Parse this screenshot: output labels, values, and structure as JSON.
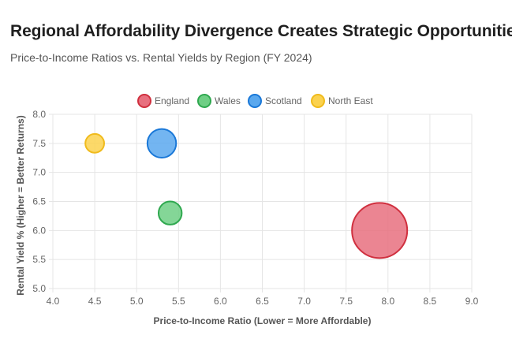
{
  "header": {
    "title": "Regional Affordability Divergence Creates Strategic Opportunities",
    "subtitle": "Price-to-Income Ratios vs. Rental Yields by Region (FY 2024)"
  },
  "chart_data": {
    "type": "scatter",
    "title": "Regional Affordability Divergence Creates Strategic Opportunities",
    "subtitle": "Price-to-Income Ratios vs. Rental Yields by Region (FY 2024)",
    "xlabel": "Price-to-Income Ratio (Lower = More Affordable)",
    "ylabel": "Rental Yield % (Higher = Better Returns)",
    "xlim": [
      4.0,
      9.0
    ],
    "ylim": [
      5.0,
      8.0
    ],
    "x_ticks": [
      "4.0",
      "4.5",
      "5.0",
      "5.5",
      "6.0",
      "6.5",
      "7.0",
      "7.5",
      "8.0",
      "8.5",
      "9.0"
    ],
    "y_ticks": [
      "8.0",
      "7.5",
      "7.0",
      "6.5",
      "6.0",
      "5.5",
      "5.0"
    ],
    "grid": true,
    "legend_position": "top-center",
    "series": [
      {
        "name": "England",
        "x": 7.9,
        "y": 6.0,
        "relative_size": 1.0,
        "fill": "#e8707f",
        "stroke": "#d0303f"
      },
      {
        "name": "Wales",
        "x": 5.4,
        "y": 6.3,
        "relative_size": 0.42,
        "fill": "#6fcf85",
        "stroke": "#2fa84f"
      },
      {
        "name": "Scotland",
        "x": 5.3,
        "y": 7.5,
        "relative_size": 0.52,
        "fill": "#5aa8ee",
        "stroke": "#1a78d8"
      },
      {
        "name": "North East",
        "x": 4.5,
        "y": 7.5,
        "relative_size": 0.34,
        "fill": "#fbd24f",
        "stroke": "#f0bb1d"
      }
    ]
  }
}
